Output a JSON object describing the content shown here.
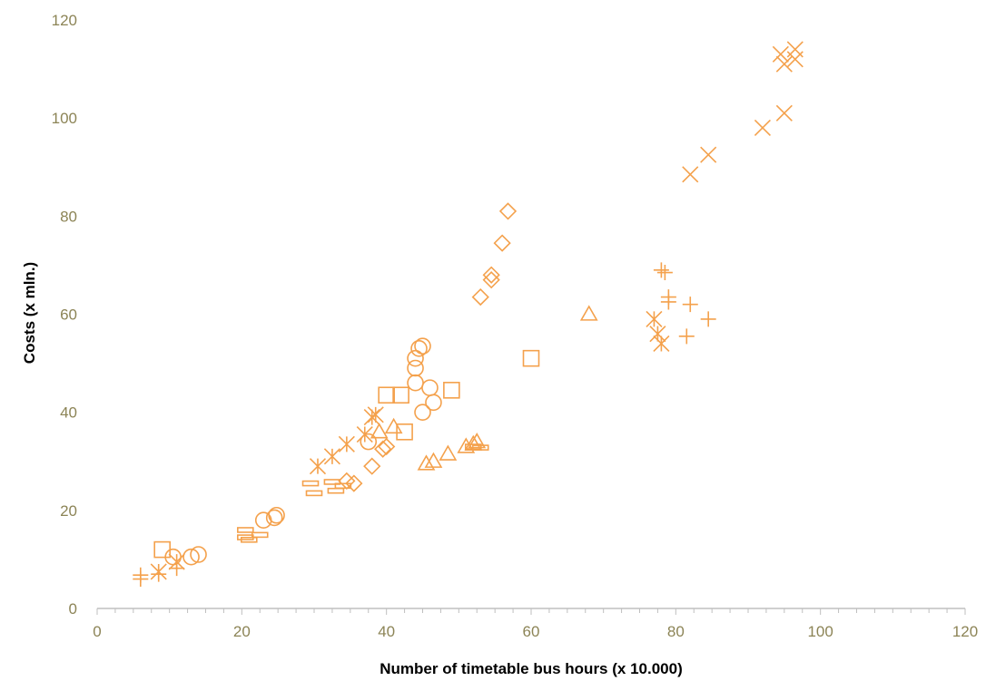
{
  "chart_data": {
    "type": "scatter",
    "xlabel": "Number of timetable bus hours (x 10.000)",
    "ylabel": "Costs (x mln.)",
    "xlim": [
      0,
      120
    ],
    "ylim": [
      0,
      120
    ],
    "xticks": [
      "0",
      "20",
      "40",
      "60",
      "80",
      "100",
      "120"
    ],
    "yticks": [
      "0",
      "20",
      "40",
      "60",
      "80",
      "100",
      "120"
    ],
    "grid": false,
    "legend": "none",
    "colors": {
      "marker": "#F4A14C",
      "tick_label": "#8C8456",
      "axis": "#BFBFBF",
      "title": "#000000"
    },
    "series": [
      {
        "marker": "x-cross",
        "points": [
          [
            94.5,
            113
          ],
          [
            95,
            111
          ],
          [
            96.5,
            114
          ],
          [
            96.5,
            112
          ],
          [
            95,
            101
          ],
          [
            92,
            98
          ],
          [
            84.5,
            92.5
          ],
          [
            82,
            88.5
          ]
        ]
      },
      {
        "marker": "diamond",
        "points": [
          [
            56.8,
            81
          ],
          [
            56,
            74.5
          ],
          [
            54.5,
            68
          ],
          [
            54.5,
            67
          ],
          [
            53,
            63.5
          ],
          [
            38,
            29
          ],
          [
            39.5,
            32.5
          ],
          [
            35.5,
            25.5
          ],
          [
            34.5,
            26
          ],
          [
            40,
            33
          ]
        ]
      },
      {
        "marker": "plus",
        "points": [
          [
            78,
            69
          ],
          [
            78.5,
            68.5
          ],
          [
            79,
            63.5
          ],
          [
            79,
            62.5
          ],
          [
            82,
            62
          ],
          [
            84.5,
            59
          ],
          [
            81.5,
            55.5
          ],
          [
            6,
            6.8
          ],
          [
            6,
            6
          ],
          [
            8.5,
            7
          ],
          [
            11,
            8.2
          ]
        ]
      },
      {
        "marker": "star",
        "points": [
          [
            77,
            59
          ],
          [
            77.5,
            56
          ],
          [
            78,
            54
          ],
          [
            38,
            39
          ],
          [
            38.5,
            39.5
          ],
          [
            37,
            35.5
          ],
          [
            34.5,
            33.5
          ],
          [
            32.5,
            31
          ],
          [
            30.5,
            29
          ],
          [
            8.5,
            7.5
          ],
          [
            11,
            9.5
          ]
        ]
      },
      {
        "marker": "triangle",
        "points": [
          [
            68,
            60
          ],
          [
            52.5,
            34
          ],
          [
            52,
            33.5
          ],
          [
            51,
            33
          ],
          [
            48.5,
            31.5
          ],
          [
            46.5,
            30
          ],
          [
            45.5,
            29.5
          ],
          [
            41,
            37
          ],
          [
            39,
            36
          ]
        ]
      },
      {
        "marker": "square",
        "points": [
          [
            60,
            51
          ],
          [
            49,
            44.5
          ],
          [
            40,
            43.5
          ],
          [
            42,
            43.5
          ],
          [
            42.5,
            36
          ],
          [
            9,
            12
          ]
        ]
      },
      {
        "marker": "circle",
        "points": [
          [
            45,
            53.5
          ],
          [
            44.5,
            53
          ],
          [
            44,
            51
          ],
          [
            44,
            49
          ],
          [
            44,
            46
          ],
          [
            46,
            45
          ],
          [
            46.5,
            42
          ],
          [
            45,
            40
          ],
          [
            37.5,
            34
          ],
          [
            23,
            18
          ],
          [
            24.5,
            18.5
          ],
          [
            24.8,
            19
          ],
          [
            13,
            10.5
          ],
          [
            14,
            11
          ],
          [
            10.5,
            10.5
          ]
        ]
      },
      {
        "marker": "dash",
        "points": [
          [
            29.5,
            25.5
          ],
          [
            30,
            23.5
          ],
          [
            32.5,
            25.8
          ],
          [
            33,
            24
          ],
          [
            34,
            25
          ],
          [
            52,
            33
          ],
          [
            53,
            32.8
          ],
          [
            20.5,
            16
          ],
          [
            20.5,
            14.5
          ],
          [
            21,
            14
          ],
          [
            22.5,
            15
          ]
        ]
      }
    ]
  }
}
